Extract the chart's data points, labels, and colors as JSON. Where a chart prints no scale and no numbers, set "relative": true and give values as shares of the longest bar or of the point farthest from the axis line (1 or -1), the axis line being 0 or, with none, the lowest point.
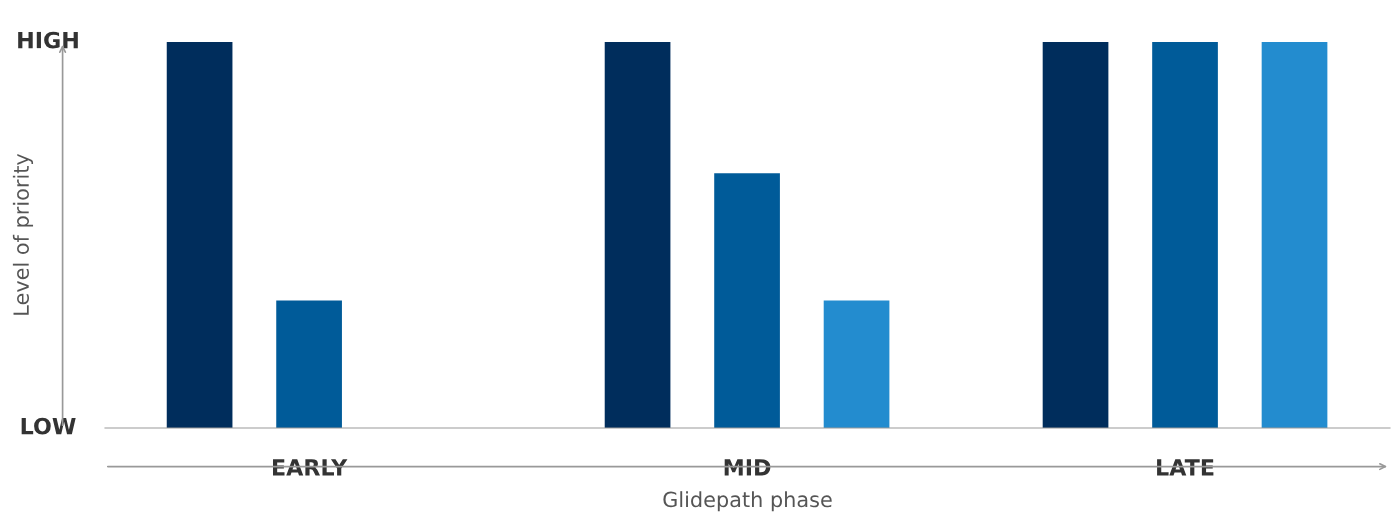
{
  "chart_data": {
    "type": "bar",
    "relative": true,
    "xlabel": "Glidepath phase",
    "ylabel": "Level of priority",
    "categories": [
      "EARLY",
      "MID",
      "LATE"
    ],
    "series": [
      {
        "color": "#002d5c",
        "values": [
          1,
          1,
          1
        ]
      },
      {
        "color": "#005b99",
        "values": [
          0.33,
          0.66,
          1
        ]
      },
      {
        "color": "#238ccf",
        "values": [
          null,
          0.33,
          1
        ]
      }
    ],
    "annotations": [
      "HIGH",
      "LOW"
    ],
    "grid": false,
    "legend": false
  }
}
